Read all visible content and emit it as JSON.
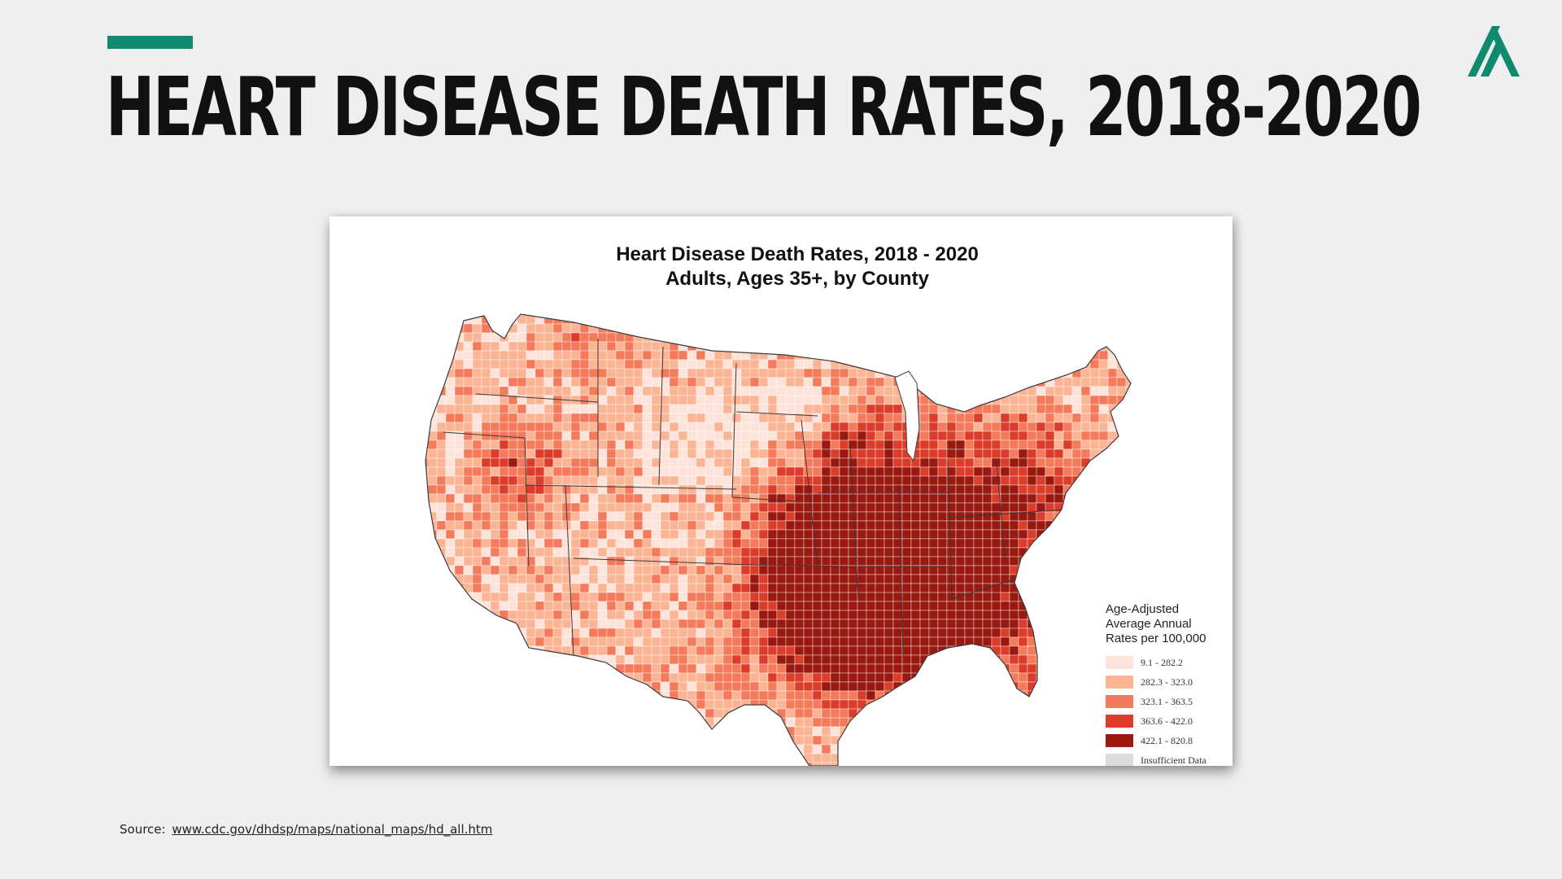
{
  "slide": {
    "title": "HEART DISEASE DEATH RATES, 2018-2020",
    "accent_color": "#108a6e",
    "logo_icon": "stylized-a-logo-icon",
    "source_label": "Source:",
    "source_link": "www.cdc.gov/dhdsp/maps/national_maps/hd_all.htm"
  },
  "map": {
    "title_line1": "Heart Disease Death Rates, 2018 - 2020",
    "title_line2": "Adults, Ages 35+, by County",
    "legend": {
      "title_line1": "Age-Adjusted",
      "title_line2": "Average Annual",
      "title_line3": "Rates per 100,000",
      "items": [
        {
          "label": "9.1 - 282.2",
          "color": "#fde3d9"
        },
        {
          "label": "282.3 - 323.0",
          "color": "#fbb595"
        },
        {
          "label": "323.1 - 363.5",
          "color": "#f47a5c"
        },
        {
          "label": "363.6 - 422.0",
          "color": "#dc3d2a"
        },
        {
          "label": "422.1 - 820.8",
          "color": "#99180f"
        },
        {
          "label": "Insufficient Data",
          "color": "#dcdcdc"
        }
      ]
    }
  }
}
